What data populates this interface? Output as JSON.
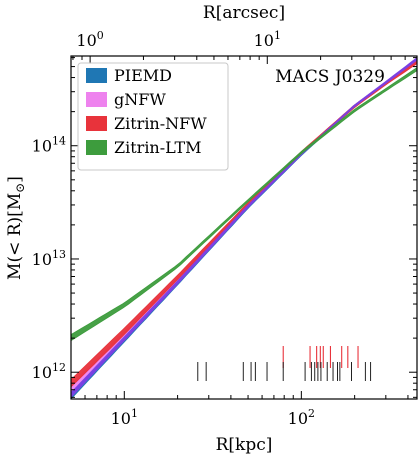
{
  "chart_data": {
    "type": "line",
    "title": "",
    "annotation": "MACS J0329",
    "xlabel": "R[kpc]",
    "ylabel": "M(< R)[M",
    "ylabel_sub": "⊙",
    "ylabel_close": "]",
    "top_xlabel": "R[arcsec]",
    "x_scale": "log",
    "y_scale": "log",
    "xlim": [
      5,
      450
    ],
    "ylim": [
      580000000000.0,
      620000000000000.0
    ],
    "top_xlim": [
      0.78,
      70
    ],
    "x_ticks": [
      {
        "value": 10,
        "label_base": "10",
        "label_exp": "1"
      },
      {
        "value": 100,
        "label_base": "10",
        "label_exp": "2"
      }
    ],
    "y_ticks": [
      {
        "value": 1000000000000.0,
        "label_base": "10",
        "label_exp": "12"
      },
      {
        "value": 10000000000000.0,
        "label_base": "10",
        "label_exp": "13"
      },
      {
        "value": 100000000000000.0,
        "label_base": "10",
        "label_exp": "14"
      }
    ],
    "top_ticks": [
      {
        "value": 1,
        "label_base": "10",
        "label_exp": "0"
      },
      {
        "value": 10,
        "label_base": "10",
        "label_exp": "1"
      }
    ],
    "grid": false,
    "legend_position": "top-left",
    "series": [
      {
        "name": "PIEMD",
        "color": "#1f77b4",
        "x": [
          5,
          10,
          20,
          50,
          100,
          200,
          300,
          450
        ],
        "y_low": [
          580000000000.0,
          1850000000000.0,
          5900000000000.0,
          28000000000000.0,
          82000000000000.0,
          220000000000000.0,
          350000000000000.0,
          560000000000000.0
        ],
        "y_high": [
          660000000000.0,
          2100000000000.0,
          6600000000000.0,
          30500000000000.0,
          87000000000000.0,
          230000000000000.0,
          365000000000000.0,
          590000000000000.0
        ]
      },
      {
        "name": "gNFW",
        "color": "#ee82ee",
        "x": [
          5,
          10,
          20,
          50,
          100,
          200,
          300,
          450
        ],
        "y_low": [
          660000000000.0,
          2000000000000.0,
          6200000000000.0,
          29000000000000.0,
          84000000000000.0,
          222000000000000.0,
          350000000000000.0,
          540000000000000.0
        ],
        "y_high": [
          780000000000.0,
          2300000000000.0,
          6900000000000.0,
          31000000000000.0,
          88000000000000.0,
          230000000000000.0,
          365000000000000.0,
          570000000000000.0
        ]
      },
      {
        "name": "Zitrin-NFW",
        "color": "#e8333b",
        "x": [
          5,
          10,
          20,
          50,
          100,
          200,
          300,
          450
        ],
        "y_low": [
          740000000000.0,
          2150000000000.0,
          6600000000000.0,
          29500000000000.0,
          84000000000000.0,
          218000000000000.0,
          345000000000000.0,
          530000000000000.0
        ],
        "y_high": [
          860000000000.0,
          2450000000000.0,
          7200000000000.0,
          31500000000000.0,
          89000000000000.0,
          230000000000000.0,
          362000000000000.0,
          560000000000000.0
        ]
      },
      {
        "name": "Zitrin-LTM",
        "color": "#3d9c3d",
        "x": [
          5,
          10,
          20,
          50,
          100,
          200,
          300,
          450
        ],
        "y_low": [
          1900000000000.0,
          3750000000000.0,
          8400000000000.0,
          32000000000000.0,
          85000000000000.0,
          200000000000000.0,
          305000000000000.0,
          460000000000000.0
        ],
        "y_high": [
          2150000000000.0,
          4100000000000.0,
          8900000000000.0,
          33500000000000.0,
          89000000000000.0,
          210000000000000.0,
          320000000000000.0,
          490000000000000.0
        ]
      },
      {
        "name": "",
        "color": "#7b3fe4",
        "x": [
          5,
          10,
          20,
          50,
          100,
          200,
          300,
          450
        ],
        "y_low": [
          600000000000.0,
          1900000000000.0,
          6000000000000.0,
          28500000000000.0,
          83000000000000.0,
          222000000000000.0,
          355000000000000.0,
          570000000000000.0
        ],
        "y_high": [
          660000000000.0,
          2050000000000.0,
          6400000000000.0,
          30000000000000.0,
          86000000000000.0,
          230000000000000.0,
          370000000000000.0,
          600000000000000.0
        ]
      }
    ],
    "rug_red": [
      79,
      112,
      122,
      128,
      133,
      146,
      169,
      183,
      209
    ],
    "rug_black": [
      26,
      29,
      47,
      52,
      55,
      64,
      79,
      105,
      114,
      119,
      124,
      129,
      140,
      151,
      160,
      165,
      192,
      230,
      246
    ]
  }
}
